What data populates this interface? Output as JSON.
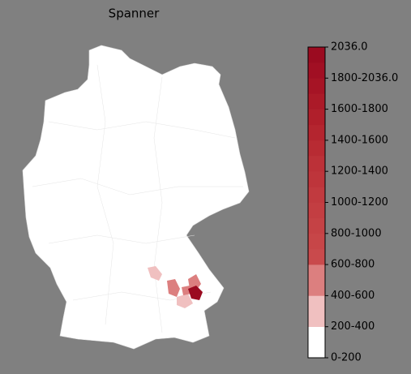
{
  "title": "Spanner",
  "colorbar": {
    "labels": [
      "0-200",
      "200-400",
      "400-600",
      "600-800",
      "800-1000",
      "1000-1200",
      "1200-1400",
      "1400-1600",
      "1600-1800",
      "1800-2036.0",
      "2036.0"
    ],
    "segment_colors": [
      "#ffffff",
      "#f0c0c0",
      "#dc7f7f",
      "#c94a4c",
      "#c74648",
      "#c54245",
      "#c33e42",
      "#c13a3f",
      "#be353b",
      "#bc3138",
      "#b82b33",
      "#b4252f",
      "#b01f2b",
      "#ab1a28",
      "#a61425",
      "#a10f23",
      "#9b0b20"
    ]
  }
}
